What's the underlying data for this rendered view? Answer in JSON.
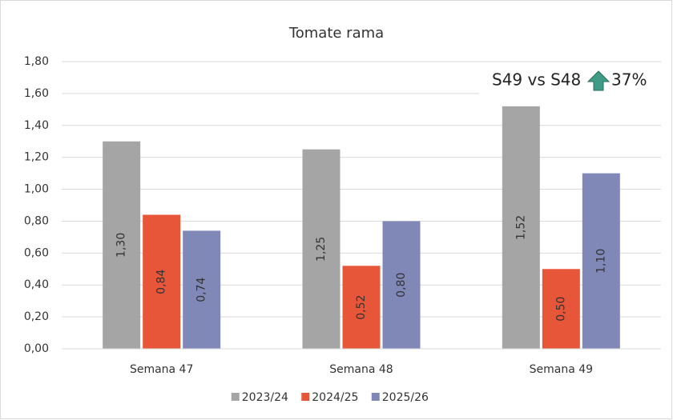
{
  "chart_data": {
    "type": "bar",
    "title": "Tomate rama",
    "categories": [
      "Semana 47",
      "Semana 48",
      "Semana 49"
    ],
    "series": [
      {
        "name": "2023/24",
        "color": "#a5a5a5",
        "values": [
          1.3,
          1.25,
          1.52
        ],
        "value_labels": [
          "1,30",
          "1,25",
          "1,52"
        ]
      },
      {
        "name": "2024/25",
        "color": "#e8563a",
        "values": [
          0.84,
          0.52,
          0.5
        ],
        "value_labels": [
          "0,84",
          "0,52",
          "0,50"
        ]
      },
      {
        "name": "2025/26",
        "color": "#8088b8",
        "values": [
          0.74,
          0.8,
          1.1
        ],
        "value_labels": [
          "0,74",
          "0,80",
          "1,10"
        ]
      }
    ],
    "ylim": [
      0,
      1.8
    ],
    "yticks": [
      {
        "value": 0,
        "label": "0,00"
      },
      {
        "value": 0.2,
        "label": "0,20"
      },
      {
        "value": 0.4,
        "label": "0,40"
      },
      {
        "value": 0.6,
        "label": "0,60"
      },
      {
        "value": 0.8,
        "label": "0,80"
      },
      {
        "value": 1.0,
        "label": "1,00"
      },
      {
        "value": 1.2,
        "label": "1,20"
      },
      {
        "value": 1.4,
        "label": "1,40"
      },
      {
        "value": 1.6,
        "label": "1,60"
      },
      {
        "value": 1.8,
        "label": "1,80"
      }
    ],
    "grid": true,
    "legend": "bottom",
    "annotation": {
      "text": "S49 vs S48",
      "change": "37%"
    }
  }
}
